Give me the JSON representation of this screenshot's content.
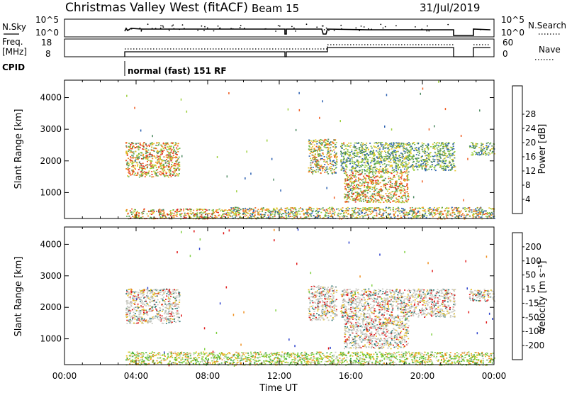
{
  "header": {
    "station": "Christmas Valley West (fitACF)",
    "beam": "Beam 15",
    "date": "31/Jul/2019"
  },
  "top_panels": {
    "nsky_label": "N.Sky",
    "nsky_ticks": [
      "10^5",
      "10^0"
    ],
    "nsearch_label": "N.Search",
    "nsearch_ticks": [
      "10^5",
      "10^0"
    ],
    "freq_label_1": "Freq.",
    "freq_label_2": "[MHz]",
    "freq_ticks": [
      "18",
      "8"
    ],
    "nave_label": "Nave",
    "nave_ticks": [
      "60",
      "0"
    ],
    "cpid_label": "CPID",
    "cpid_text": "normal (fast) 151 RF"
  },
  "chart_data": [
    {
      "type": "heatmap",
      "name": "power-panel",
      "ylabel": "Slant Range [km]",
      "xlabel": "Time UT",
      "x_ticks": [
        "00:00",
        "04:00",
        "08:00",
        "12:00",
        "16:00",
        "20:00",
        "00:00"
      ],
      "x_range_hours": [
        0,
        24
      ],
      "y_ticks": [
        1000,
        2000,
        3000,
        4000
      ],
      "ylim": [
        180,
        4550
      ],
      "colorbar": {
        "label": "Power [dB]",
        "ticks": [
          "4",
          "8",
          "12",
          "16",
          "20",
          "24",
          "28"
        ],
        "colors": [
          "#0022ee",
          "#2a5fb0",
          "#4e8a62",
          "#64b04a",
          "#9ccf3c",
          "#e6c42a",
          "#f08a22",
          "#f05a1e",
          "#e02018"
        ]
      },
      "regions": [
        {
          "t": [
            3.4,
            6.4
          ],
          "r": [
            1500,
            2600
          ],
          "level": "high"
        },
        {
          "t": [
            3.4,
            9.0
          ],
          "r": [
            180,
            500
          ],
          "level": "high"
        },
        {
          "t": [
            9.0,
            24.0
          ],
          "r": [
            180,
            550
          ],
          "level": "mid"
        },
        {
          "t": [
            13.6,
            15.2
          ],
          "r": [
            1600,
            2700
          ],
          "level": "mid"
        },
        {
          "t": [
            15.6,
            19.2
          ],
          "r": [
            700,
            1700
          ],
          "level": "high"
        },
        {
          "t": [
            15.4,
            21.8
          ],
          "r": [
            1700,
            2600
          ],
          "level": "low"
        },
        {
          "t": [
            22.6,
            24.0
          ],
          "r": [
            2200,
            2600
          ],
          "level": "low"
        }
      ]
    },
    {
      "type": "heatmap",
      "name": "velocity-panel",
      "ylabel": "Slant Range [km]",
      "xlabel": "Time UT",
      "x_ticks": [
        "00:00",
        "04:00",
        "08:00",
        "12:00",
        "16:00",
        "20:00",
        "00:00"
      ],
      "x_range_hours": [
        0,
        24
      ],
      "y_ticks": [
        1000,
        2000,
        3000,
        4000
      ],
      "ylim": [
        180,
        4550
      ],
      "colorbar": {
        "label": "Velocity [m s⁻¹]",
        "ticks": [
          "200",
          "100",
          "50",
          "15",
          "-15",
          "-50",
          "-100",
          "-200"
        ],
        "colors": [
          "#2a3fcc",
          "#2f7a78",
          "#3fa83a",
          "#7fd040",
          "#c8c8c0",
          "#e8c020",
          "#f09020",
          "#f05a1e",
          "#e01818"
        ]
      },
      "regions": [
        {
          "t": [
            3.4,
            6.4
          ],
          "r": [
            1500,
            2600
          ],
          "level": "grey"
        },
        {
          "t": [
            3.4,
            24.0
          ],
          "r": [
            180,
            600
          ],
          "level": "green"
        },
        {
          "t": [
            13.6,
            15.2
          ],
          "r": [
            1600,
            2700
          ],
          "level": "grey"
        },
        {
          "t": [
            15.6,
            19.2
          ],
          "r": [
            700,
            1700
          ],
          "level": "grey"
        },
        {
          "t": [
            15.4,
            21.8
          ],
          "r": [
            1700,
            2600
          ],
          "level": "grey"
        },
        {
          "t": [
            22.6,
            24.0
          ],
          "r": [
            2200,
            2600
          ],
          "level": "grey"
        }
      ]
    }
  ],
  "x_axis_label": "Time UT"
}
